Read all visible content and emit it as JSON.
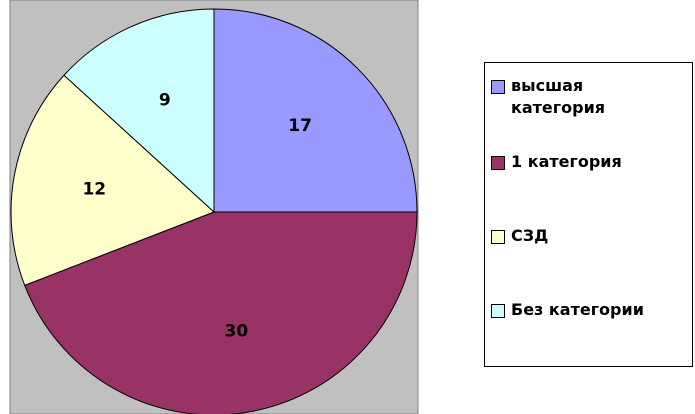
{
  "chart_data": {
    "type": "pie",
    "categories": [
      "высшая категория",
      "1 категория",
      "СЗД",
      "Без категории"
    ],
    "values": [
      17,
      30,
      12,
      9
    ],
    "colors": [
      "#9999ff",
      "#993366",
      "#ffffcc",
      "#ccffff"
    ]
  }
}
